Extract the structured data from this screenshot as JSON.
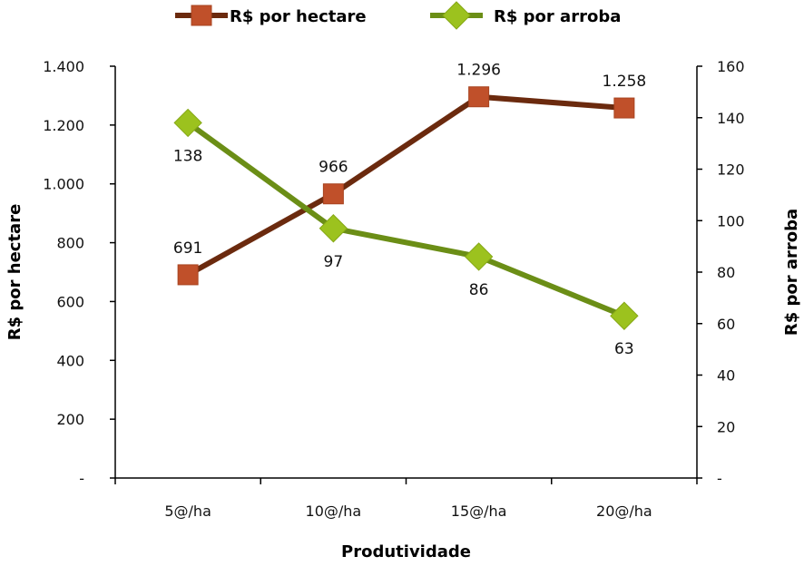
{
  "chart_data": {
    "type": "line",
    "title": "",
    "xlabel": "Produtividade",
    "ylabel_left": "R$ por hectare",
    "ylabel_right": "R$ por arroba",
    "categories": [
      "5@/ha",
      "10@/ha",
      "15@/ha",
      "20@/ha"
    ],
    "ylim_left": [
      0,
      1400
    ],
    "ylim_right": [
      0,
      160
    ],
    "yticks_left": [
      {
        "value": 0,
        "label": "-"
      },
      {
        "value": 200,
        "label": "200"
      },
      {
        "value": 400,
        "label": "400"
      },
      {
        "value": 600,
        "label": "600"
      },
      {
        "value": 800,
        "label": "800"
      },
      {
        "value": 1000,
        "label": "1.000"
      },
      {
        "value": 1200,
        "label": "1.200"
      },
      {
        "value": 1400,
        "label": "1.400"
      }
    ],
    "yticks_right": [
      {
        "value": 0,
        "label": "-"
      },
      {
        "value": 20,
        "label": "20"
      },
      {
        "value": 40,
        "label": "40"
      },
      {
        "value": 60,
        "label": "60"
      },
      {
        "value": 80,
        "label": "80"
      },
      {
        "value": 100,
        "label": "100"
      },
      {
        "value": 120,
        "label": "120"
      },
      {
        "value": 140,
        "label": "140"
      },
      {
        "value": 160,
        "label": "160"
      }
    ],
    "legend_position": "top",
    "grid": false,
    "series": [
      {
        "name": "R$ por hectare",
        "axis": "left",
        "marker": "square",
        "line_color": "#6b2a0e",
        "marker_color": "#c0502a",
        "values": [
          691,
          966,
          1296,
          1258
        ],
        "labels": [
          "691",
          "966",
          "1.296",
          "1.258"
        ],
        "label_position": "above"
      },
      {
        "name": "R$ por arroba",
        "axis": "right",
        "marker": "diamond",
        "line_color": "#6b8e16",
        "marker_color": "#9cc21e",
        "values": [
          138,
          97,
          86,
          63
        ],
        "labels": [
          "138",
          "97",
          "86",
          "63"
        ],
        "label_position": "below"
      }
    ]
  }
}
